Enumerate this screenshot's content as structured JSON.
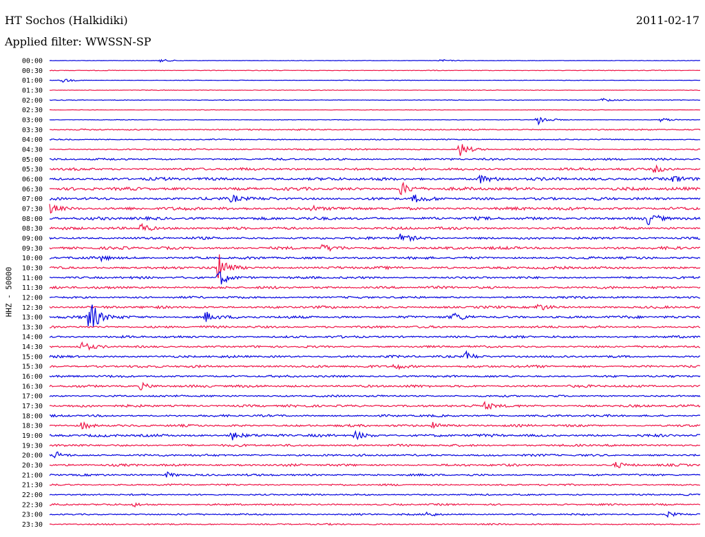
{
  "header": {
    "station": "HT Sochos (Halkidiki)",
    "filter": "Applied filter: WWSSN-SP",
    "date": "2011-02-17"
  },
  "chart_data": {
    "type": "line",
    "title": "HT Sochos (Halkidiki)",
    "subtitle": "Applied filter: WWSSN-SP",
    "date": "2011-02-17",
    "ylabel": "HHZ - 50000",
    "colors": [
      "#0000dd",
      "#ee1144"
    ],
    "row_labels": [
      "00:00",
      "00:30",
      "01:00",
      "01:30",
      "02:00",
      "02:30",
      "03:00",
      "03:30",
      "04:00",
      "04:30",
      "05:00",
      "05:30",
      "06:00",
      "06:30",
      "07:00",
      "07:30",
      "08:00",
      "08:30",
      "09:00",
      "09:30",
      "10:00",
      "10:30",
      "11:00",
      "11:30",
      "12:00",
      "12:30",
      "13:00",
      "13:30",
      "14:00",
      "14:30",
      "15:00",
      "15:30",
      "16:00",
      "16:30",
      "17:00",
      "17:30",
      "18:00",
      "18:30",
      "19:00",
      "19:30",
      "20:00",
      "20:30",
      "21:00",
      "21:30",
      "22:00",
      "22:30",
      "23:00",
      "23:30"
    ],
    "noise_level": [
      0.3,
      0.4,
      0.3,
      0.4,
      0.4,
      0.3,
      0.4,
      0.8,
      0.7,
      0.9,
      1.2,
      1.6,
      1.8,
      1.9,
      1.7,
      1.9,
      1.8,
      1.6,
      1.5,
      1.7,
      1.5,
      1.6,
      1.4,
      1.5,
      1.3,
      1.5,
      1.6,
      1.4,
      1.4,
      1.3,
      1.4,
      1.5,
      1.3,
      1.5,
      1.2,
      1.5,
      1.3,
      1.4,
      1.6,
      1.4,
      1.3,
      1.4,
      1.2,
      1.1,
      1.0,
      1.1,
      1.0,
      0.9
    ],
    "events": [
      {
        "row": 0,
        "time": 0.17,
        "amp": 2.5
      },
      {
        "row": 0,
        "time": 0.6,
        "amp": 2
      },
      {
        "row": 2,
        "time": 0.02,
        "amp": 3
      },
      {
        "row": 4,
        "time": 0.85,
        "amp": 3
      },
      {
        "row": 6,
        "time": 0.75,
        "amp": 8
      },
      {
        "row": 6,
        "time": 0.94,
        "amp": 3
      },
      {
        "row": 9,
        "time": 0.63,
        "amp": 11
      },
      {
        "row": 11,
        "time": 0.93,
        "amp": 6
      },
      {
        "row": 12,
        "time": 0.66,
        "amp": 6
      },
      {
        "row": 12,
        "time": 0.96,
        "amp": 6
      },
      {
        "row": 13,
        "time": 0.54,
        "amp": 10
      },
      {
        "row": 14,
        "time": 0.28,
        "amp": 6
      },
      {
        "row": 14,
        "time": 0.56,
        "amp": 6
      },
      {
        "row": 15,
        "time": 0.0,
        "amp": 7
      },
      {
        "row": 15,
        "time": 0.4,
        "amp": 5
      },
      {
        "row": 16,
        "time": 0.92,
        "amp": 8
      },
      {
        "row": 17,
        "time": 0.14,
        "amp": 8
      },
      {
        "row": 18,
        "time": 0.54,
        "amp": 7
      },
      {
        "row": 19,
        "time": 0.42,
        "amp": 5
      },
      {
        "row": 20,
        "time": 0.08,
        "amp": 4
      },
      {
        "row": 21,
        "time": 0.26,
        "amp": 20
      },
      {
        "row": 22,
        "time": 0.26,
        "amp": 14
      },
      {
        "row": 25,
        "time": 0.75,
        "amp": 5
      },
      {
        "row": 26,
        "time": 0.06,
        "amp": 30
      },
      {
        "row": 26,
        "time": 0.24,
        "amp": 8
      },
      {
        "row": 26,
        "time": 0.62,
        "amp": 6
      },
      {
        "row": 29,
        "time": 0.05,
        "amp": 6
      },
      {
        "row": 30,
        "time": 0.64,
        "amp": 7
      },
      {
        "row": 31,
        "time": 0.53,
        "amp": 5
      },
      {
        "row": 33,
        "time": 0.14,
        "amp": 5
      },
      {
        "row": 35,
        "time": 0.67,
        "amp": 6
      },
      {
        "row": 37,
        "time": 0.05,
        "amp": 6
      },
      {
        "row": 37,
        "time": 0.59,
        "amp": 6
      },
      {
        "row": 38,
        "time": 0.28,
        "amp": 7
      },
      {
        "row": 38,
        "time": 0.47,
        "amp": 6
      },
      {
        "row": 40,
        "time": 0.01,
        "amp": 5
      },
      {
        "row": 41,
        "time": 0.87,
        "amp": 4
      },
      {
        "row": 42,
        "time": 0.18,
        "amp": 4
      },
      {
        "row": 45,
        "time": 0.13,
        "amp": 3
      },
      {
        "row": 46,
        "time": 0.58,
        "amp": 4
      },
      {
        "row": 46,
        "time": 0.95,
        "amp": 4
      }
    ]
  }
}
